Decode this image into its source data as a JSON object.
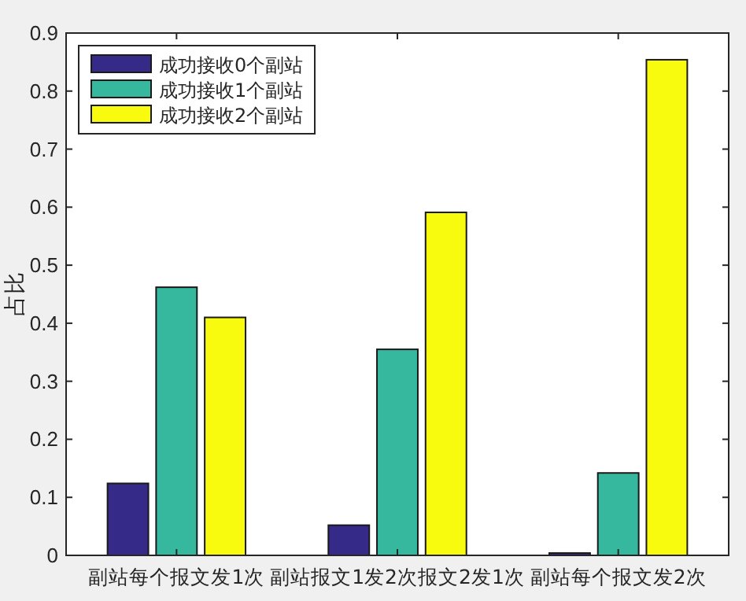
{
  "chart_data": {
    "type": "bar",
    "ylabel": "占比",
    "categories": [
      "副站每个报文发1次",
      "副站报文1发2次报文2发1次",
      "副站每个报文发2次"
    ],
    "series": [
      {
        "name": "成功接收0个副站",
        "color": "#352a87",
        "values": [
          0.124,
          0.052,
          0.004
        ]
      },
      {
        "name": "成功接收1个副站",
        "color": "#36b89f",
        "values": [
          0.462,
          0.355,
          0.142
        ]
      },
      {
        "name": "成功接收2个副站",
        "color": "#f9fb0e",
        "values": [
          0.41,
          0.591,
          0.854
        ]
      }
    ],
    "ylim": [
      0,
      0.9
    ],
    "yticks": [
      0,
      0.1,
      0.2,
      0.3,
      0.4,
      0.5,
      0.6,
      0.7,
      0.8,
      0.9
    ],
    "grid": false,
    "legend": "top left"
  }
}
